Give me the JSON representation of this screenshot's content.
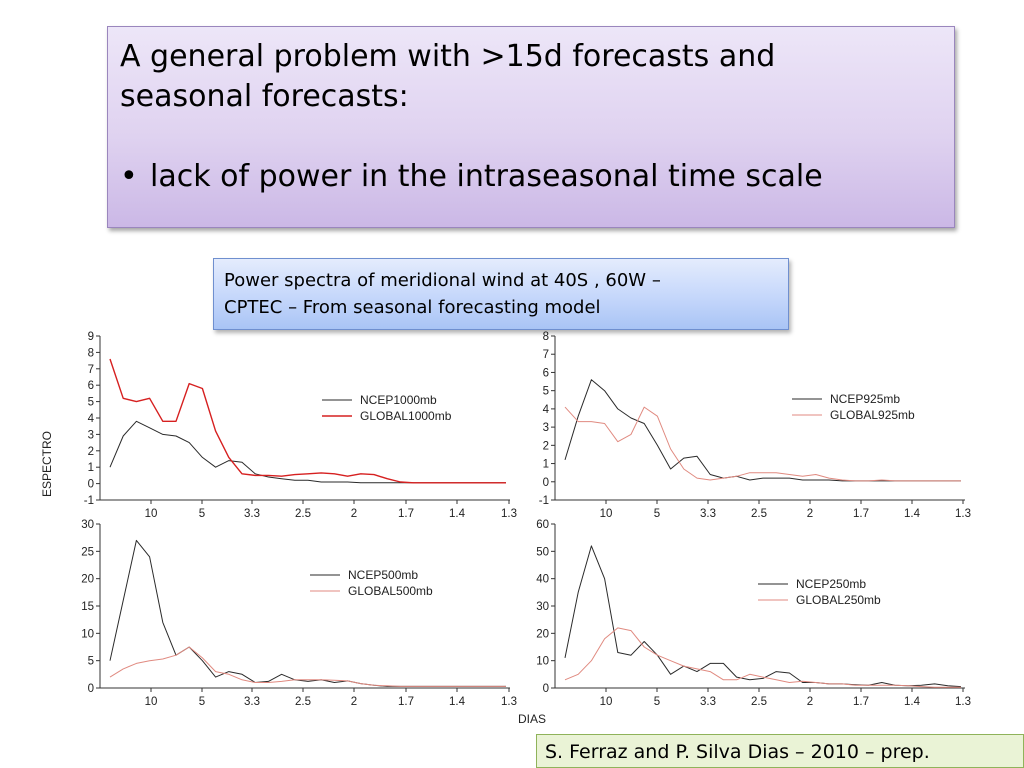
{
  "title": {
    "line1": "A general problem with >15d forecasts and",
    "line2": "seasonal forecasts:",
    "bullet_symbol": "•",
    "bullet": "lack of power in the intraseasonal time scale"
  },
  "caption": {
    "line1": "Power spectra of meridional wind at 40S , 60W –",
    "line2": "CPTEC –  From seasonal forecasting model"
  },
  "credit": "S. Ferraz  and P. Silva Dias – 2010 – prep.",
  "axis_titles": {
    "y": "ESPECTRO",
    "x": "DIAS"
  },
  "colors": {
    "ncep": "#2a2a2a",
    "global_bold": "#d62020",
    "global_light": "#e08a80"
  },
  "chart_data": [
    {
      "type": "line",
      "x_tick_labels": [
        "10",
        "5",
        "3.3",
        "2.5",
        "2",
        "1.7",
        "1.4",
        "1.3"
      ],
      "ylim": [
        -1,
        9
      ],
      "y_ticks": [
        -1,
        0,
        1,
        2,
        3,
        4,
        5,
        6,
        7,
        8,
        9
      ],
      "series": [
        {
          "name": "NCEP1000mb",
          "color": "#2a2a2a",
          "values": [
            1.0,
            2.9,
            3.8,
            3.4,
            3.0,
            2.9,
            2.5,
            1.6,
            1.0,
            1.4,
            1.3,
            0.6,
            0.4,
            0.3,
            0.2,
            0.2,
            0.1,
            0.1,
            0.1,
            0.05,
            0.05,
            0.05,
            0.05,
            0.05,
            0.05,
            0.05,
            0.05,
            0.05,
            0.05,
            0.05,
            0.05
          ]
        },
        {
          "name": "GLOBAL1000mb",
          "color": "#d62020",
          "values": [
            7.6,
            5.2,
            5.0,
            5.2,
            3.8,
            3.8,
            6.1,
            5.8,
            3.2,
            1.6,
            0.6,
            0.5,
            0.5,
            0.45,
            0.55,
            0.6,
            0.65,
            0.6,
            0.45,
            0.6,
            0.55,
            0.3,
            0.1,
            0.05,
            0.05,
            0.05,
            0.05,
            0.05,
            0.05,
            0.05,
            0.05
          ]
        }
      ]
    },
    {
      "type": "line",
      "x_tick_labels": [
        "10",
        "5",
        "3.3",
        "2.5",
        "2",
        "1.7",
        "1.4",
        "1.3"
      ],
      "ylim": [
        -1,
        8
      ],
      "y_ticks": [
        -1,
        0,
        1,
        2,
        3,
        4,
        5,
        6,
        7,
        8
      ],
      "series": [
        {
          "name": "NCEP925mb",
          "color": "#2a2a2a",
          "values": [
            1.2,
            3.6,
            5.6,
            5.0,
            4.0,
            3.5,
            3.2,
            2.0,
            0.7,
            1.3,
            1.4,
            0.4,
            0.2,
            0.3,
            0.1,
            0.2,
            0.2,
            0.2,
            0.1,
            0.1,
            0.1,
            0.05,
            0.05,
            0.05,
            0.05,
            0.05,
            0.05,
            0.05,
            0.05,
            0.05,
            0.05
          ]
        },
        {
          "name": "GLOBAL925mb",
          "color": "#e08a80",
          "values": [
            4.1,
            3.3,
            3.3,
            3.2,
            2.2,
            2.6,
            4.1,
            3.6,
            1.8,
            0.7,
            0.2,
            0.1,
            0.2,
            0.3,
            0.5,
            0.5,
            0.5,
            0.4,
            0.3,
            0.4,
            0.2,
            0.1,
            0.05,
            0.05,
            0.1,
            0.05,
            0.05,
            0.05,
            0.05,
            0.05,
            0.05
          ]
        }
      ]
    },
    {
      "type": "line",
      "x_tick_labels": [
        "10",
        "5",
        "3.3",
        "2.5",
        "2",
        "1.7",
        "1.4",
        "1.3"
      ],
      "ylim": [
        0,
        30
      ],
      "y_ticks": [
        0,
        5,
        10,
        15,
        20,
        25,
        30
      ],
      "series": [
        {
          "name": "NCEP500mb",
          "color": "#2a2a2a",
          "values": [
            5.0,
            16.0,
            27.0,
            24.0,
            12.0,
            6.0,
            7.5,
            5.0,
            2.0,
            3.0,
            2.5,
            1.0,
            1.2,
            2.5,
            1.5,
            1.2,
            1.5,
            1.0,
            1.3,
            0.8,
            0.5,
            0.3,
            0.3,
            0.3,
            0.3,
            0.3,
            0.3,
            0.3,
            0.3,
            0.3,
            0.3
          ]
        },
        {
          "name": "GLOBAL500mb",
          "color": "#e08a80",
          "values": [
            2.0,
            3.5,
            4.5,
            5.0,
            5.3,
            6.0,
            7.5,
            5.5,
            3.0,
            2.5,
            1.5,
            1.0,
            1.0,
            1.2,
            1.5,
            1.5,
            1.5,
            1.4,
            1.3,
            0.8,
            0.5,
            0.4,
            0.3,
            0.3,
            0.3,
            0.3,
            0.3,
            0.3,
            0.3,
            0.3,
            0.3
          ]
        }
      ]
    },
    {
      "type": "line",
      "x_tick_labels": [
        "10",
        "5",
        "3.3",
        "2.5",
        "2",
        "1.7",
        "1.4",
        "1.3"
      ],
      "ylim": [
        0,
        60
      ],
      "y_ticks": [
        0,
        10,
        20,
        30,
        40,
        50,
        60
      ],
      "series": [
        {
          "name": "NCEP250mb",
          "color": "#2a2a2a",
          "values": [
            11.0,
            35.0,
            52.0,
            40.0,
            13.0,
            12.0,
            17.0,
            12.0,
            5.0,
            8.0,
            6.0,
            9.0,
            9.0,
            4.0,
            3.0,
            3.5,
            6.0,
            5.5,
            2.0,
            2.0,
            1.5,
            1.5,
            1.2,
            1.0,
            2.0,
            1.0,
            0.8,
            1.0,
            1.5,
            0.8,
            0.5
          ]
        },
        {
          "name": "GLOBAL250mb",
          "color": "#e08a80",
          "values": [
            3.0,
            5.0,
            10.0,
            18.0,
            22.0,
            21.0,
            15.0,
            12.0,
            10.0,
            8.0,
            7.0,
            6.0,
            3.0,
            3.0,
            5.0,
            4.0,
            3.0,
            2.0,
            2.5,
            2.0,
            1.5,
            1.5,
            1.0,
            1.0,
            1.0,
            1.0,
            0.8,
            0.5,
            0.3,
            0.3,
            0.3
          ]
        }
      ]
    }
  ]
}
